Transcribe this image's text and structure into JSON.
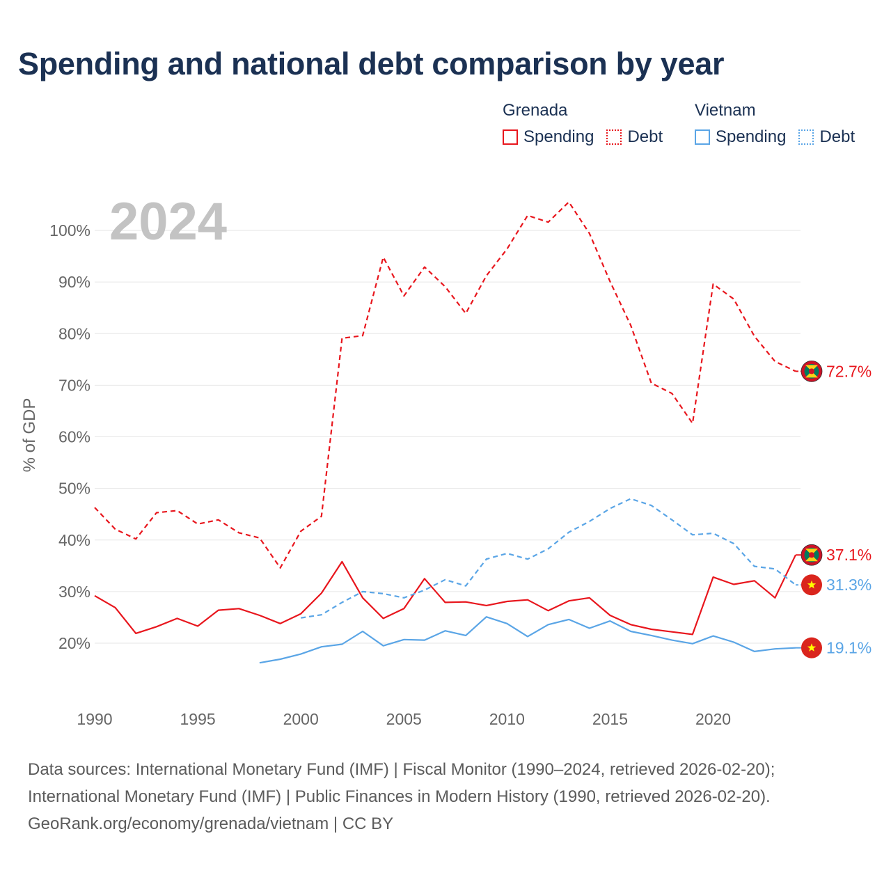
{
  "title": "Spending and national debt comparison by year",
  "legend": {
    "groups": [
      {
        "country": "Grenada",
        "color": "#e8161d",
        "items": [
          {
            "label": "Spending",
            "style": "solid"
          },
          {
            "label": "Debt",
            "style": "dotted"
          }
        ]
      },
      {
        "country": "Vietnam",
        "color": "#5aa5e6",
        "items": [
          {
            "label": "Spending",
            "style": "solid"
          },
          {
            "label": "Debt",
            "style": "dotted"
          }
        ]
      }
    ]
  },
  "footer": {
    "line1": "Data sources: International Monetary Fund (IMF) | Fiscal Monitor (1990–2024, retrieved 2026-02-20);",
    "line2": "International Monetary Fund (IMF) | Public Finances in Modern History (1990, retrieved 2026-02-20).",
    "line3": "GeoRank.org/economy/grenada/vietnam | CC BY"
  },
  "colors": {
    "grenada": "#e8161d",
    "vietnam": "#5aa5e6",
    "axis_text": "#666666",
    "grid": "#e6e6e6",
    "year_watermark": "#c3c3c3"
  },
  "chart_data": {
    "type": "line",
    "title": "Spending and national debt comparison by year",
    "year_label": "2024",
    "xlabel": "",
    "ylabel": "% of GDP",
    "xlim": [
      1990,
      2024
    ],
    "ylim": [
      10,
      105
    ],
    "x_ticks": [
      1990,
      1995,
      2000,
      2005,
      2010,
      2015,
      2020
    ],
    "y_ticks": [
      20,
      30,
      40,
      50,
      60,
      70,
      80,
      90,
      100
    ],
    "y_tick_labels": [
      "20%",
      "30%",
      "40%",
      "50%",
      "60%",
      "70%",
      "80%",
      "90%",
      "100%"
    ],
    "grid": true,
    "series": [
      {
        "name": "Grenada Debt",
        "country": "Grenada",
        "metric": "Debt",
        "color": "#e8161d",
        "dash": "dashed",
        "x": [
          1990,
          1991,
          1992,
          1993,
          1994,
          1995,
          1996,
          1997,
          1998,
          1999,
          2000,
          2001,
          2002,
          2003,
          2004,
          2005,
          2006,
          2007,
          2008,
          2009,
          2010,
          2011,
          2012,
          2013,
          2014,
          2015,
          2016,
          2017,
          2018,
          2019,
          2020,
          2021,
          2022,
          2023,
          2024
        ],
        "values": [
          46.3,
          42.1,
          40.2,
          45.3,
          45.7,
          43.1,
          43.9,
          41.4,
          40.4,
          34.6,
          41.7,
          44.6,
          79.1,
          79.6,
          94.8,
          87.3,
          92.9,
          89.1,
          83.9,
          91.2,
          96.4,
          102.9,
          101.6,
          105.5,
          99.4,
          90.1,
          81.6,
          70.4,
          68.4,
          62.6,
          89.6,
          86.7,
          79.5,
          74.6,
          72.7
        ],
        "end_label": "72.7%"
      },
      {
        "name": "Grenada Spending",
        "country": "Grenada",
        "metric": "Spending",
        "color": "#e8161d",
        "dash": "solid",
        "x": [
          1990,
          1991,
          1992,
          1993,
          1994,
          1995,
          1996,
          1997,
          1998,
          1999,
          2000,
          2001,
          2002,
          2003,
          2004,
          2005,
          2006,
          2007,
          2008,
          2009,
          2010,
          2011,
          2012,
          2013,
          2014,
          2015,
          2016,
          2017,
          2018,
          2019,
          2020,
          2021,
          2022,
          2023,
          2024
        ],
        "values": [
          29.2,
          26.9,
          21.9,
          23.2,
          24.8,
          23.3,
          26.4,
          26.7,
          25.4,
          23.8,
          25.7,
          29.7,
          35.8,
          28.8,
          24.8,
          26.7,
          32.5,
          27.9,
          28.0,
          27.3,
          28.1,
          28.4,
          26.3,
          28.2,
          28.8,
          25.4,
          23.6,
          22.7,
          22.2,
          21.7,
          32.8,
          31.4,
          32.1,
          28.8,
          37.1
        ],
        "end_label": "37.1%"
      },
      {
        "name": "Vietnam Debt",
        "country": "Vietnam",
        "metric": "Debt",
        "color": "#5aa5e6",
        "dash": "dashed",
        "x": [
          2000,
          2001,
          2002,
          2003,
          2004,
          2005,
          2006,
          2007,
          2008,
          2009,
          2010,
          2011,
          2012,
          2013,
          2014,
          2015,
          2016,
          2017,
          2018,
          2019,
          2020,
          2021,
          2022,
          2023,
          2024
        ],
        "values": [
          24.9,
          25.5,
          27.9,
          30.0,
          29.6,
          28.8,
          30.3,
          32.3,
          31.1,
          36.3,
          37.4,
          36.3,
          38.3,
          41.5,
          43.6,
          46.1,
          48.0,
          46.7,
          43.9,
          41.0,
          41.3,
          39.3,
          34.9,
          34.4,
          31.3
        ],
        "end_label": "31.3%"
      },
      {
        "name": "Vietnam Spending",
        "country": "Vietnam",
        "metric": "Spending",
        "color": "#5aa5e6",
        "dash": "solid",
        "x": [
          1998,
          1999,
          2000,
          2001,
          2002,
          2003,
          2004,
          2005,
          2006,
          2007,
          2008,
          2009,
          2010,
          2011,
          2012,
          2013,
          2014,
          2015,
          2016,
          2017,
          2018,
          2019,
          2020,
          2021,
          2022,
          2023,
          2024
        ],
        "values": [
          16.2,
          16.9,
          17.9,
          19.3,
          19.8,
          22.3,
          19.5,
          20.7,
          20.6,
          22.4,
          21.5,
          25.1,
          23.8,
          21.3,
          23.6,
          24.6,
          22.9,
          24.3,
          22.3,
          21.5,
          20.6,
          19.9,
          21.4,
          20.2,
          18.4,
          18.9,
          19.1
        ],
        "end_label": "19.1%"
      }
    ]
  }
}
